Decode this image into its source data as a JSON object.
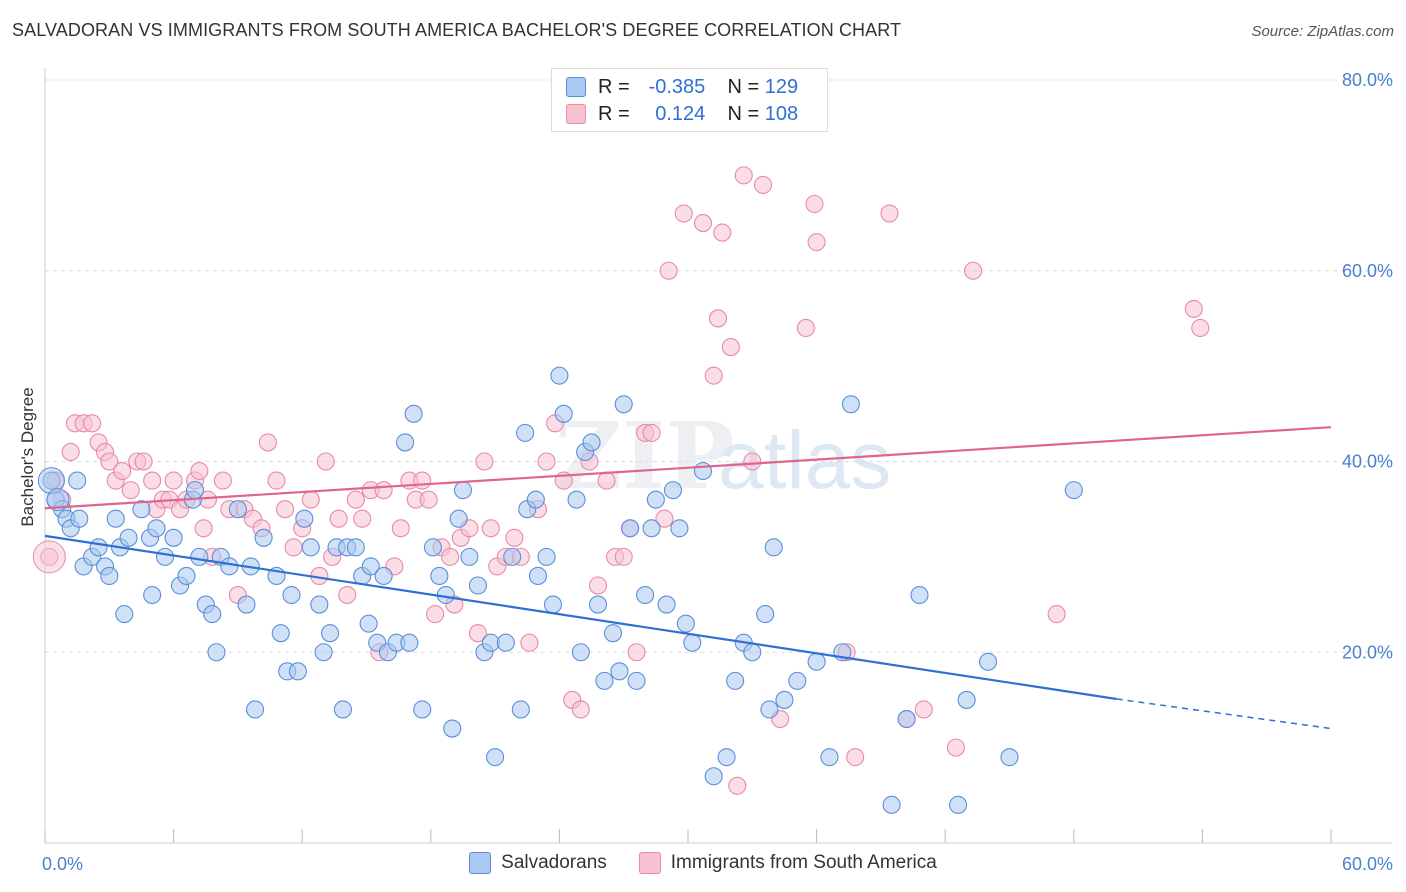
{
  "title": "SALVADORAN VS IMMIGRANTS FROM SOUTH AMERICA BACHELOR'S DEGREE CORRELATION CHART",
  "source": "Source: ZipAtlas.com",
  "watermark": {
    "zip": "ZIP",
    "atlas": "atlas"
  },
  "legend": {
    "r_label": "R =",
    "n_label": "N =",
    "rows": [
      {
        "r": "-0.385",
        "n": "129"
      },
      {
        "r": "0.124",
        "n": "108"
      }
    ]
  },
  "bottom_legend": [
    "Salvadorans",
    "Immigrants from South America"
  ],
  "colors": {
    "blue_fill": "#aac8f0",
    "blue_stroke": "#5b8fd9",
    "blue_line": "#2f6fd6",
    "pink_fill": "#f7c1d1",
    "pink_stroke": "#e88aa8",
    "pink_line": "#e0658e",
    "grid": "#dcdcdc",
    "tick_text": "#4a80d0"
  },
  "chart_data": {
    "type": "scatter",
    "title": "SALVADORAN VS IMMIGRANTS FROM SOUTH AMERICA BACHELOR'S DEGREE CORRELATION CHART",
    "xlabel": "",
    "ylabel": "Bachelor's Degree",
    "xlim": [
      0,
      60
    ],
    "ylim": [
      0,
      80
    ],
    "x_tick_labels": [
      "0.0%",
      "60.0%"
    ],
    "y_tick_values": [
      20,
      40,
      60,
      80
    ],
    "y_tick_labels": [
      "20.0%",
      "40.0%",
      "60.0%",
      "80.0%"
    ],
    "grid": true,
    "series": [
      {
        "name": "Salvadorans",
        "color": "#5b8fd9",
        "trend": {
          "x0": 0,
          "y0": 32.2,
          "x1": 50,
          "y1": 15.1,
          "dash_to": 60,
          "dash_y": 12.0
        },
        "points": [
          [
            0.3,
            38
          ],
          [
            0.5,
            36
          ],
          [
            0.8,
            35
          ],
          [
            1,
            34
          ],
          [
            1.2,
            33
          ],
          [
            1.5,
            38
          ],
          [
            1.6,
            34
          ],
          [
            1.8,
            29
          ],
          [
            2.2,
            30
          ],
          [
            2.5,
            31
          ],
          [
            2.8,
            29
          ],
          [
            3,
            28
          ],
          [
            3.3,
            34
          ],
          [
            3.5,
            31
          ],
          [
            3.7,
            24
          ],
          [
            3.9,
            32
          ],
          [
            4.5,
            35
          ],
          [
            4.9,
            32
          ],
          [
            5,
            26
          ],
          [
            5.2,
            33
          ],
          [
            5.6,
            30
          ],
          [
            6,
            32
          ],
          [
            6.3,
            27
          ],
          [
            6.6,
            28
          ],
          [
            6.9,
            36
          ],
          [
            7,
            37
          ],
          [
            7.2,
            30
          ],
          [
            7.5,
            25
          ],
          [
            7.8,
            24
          ],
          [
            8,
            20
          ],
          [
            8.2,
            30
          ],
          [
            8.6,
            29
          ],
          [
            9,
            35
          ],
          [
            9.4,
            25
          ],
          [
            9.6,
            29
          ],
          [
            9.8,
            14
          ],
          [
            10.2,
            32
          ],
          [
            10.8,
            28
          ],
          [
            11,
            22
          ],
          [
            11.3,
            18
          ],
          [
            11.5,
            26
          ],
          [
            11.8,
            18
          ],
          [
            12.1,
            34
          ],
          [
            12.4,
            31
          ],
          [
            12.8,
            25
          ],
          [
            13,
            20
          ],
          [
            13.3,
            22
          ],
          [
            13.6,
            31
          ],
          [
            13.9,
            14
          ],
          [
            14.1,
            31
          ],
          [
            14.5,
            31
          ],
          [
            14.8,
            28
          ],
          [
            15.1,
            23
          ],
          [
            15.2,
            29
          ],
          [
            15.5,
            21
          ],
          [
            15.8,
            28
          ],
          [
            16,
            20
          ],
          [
            16.4,
            21
          ],
          [
            16.8,
            42
          ],
          [
            17,
            21
          ],
          [
            17.2,
            45
          ],
          [
            17.6,
            14
          ],
          [
            18.1,
            31
          ],
          [
            18.4,
            28
          ],
          [
            18.7,
            26
          ],
          [
            19,
            12
          ],
          [
            19.5,
            37
          ],
          [
            19.8,
            30
          ],
          [
            20.2,
            27
          ],
          [
            20.5,
            20
          ],
          [
            20.8,
            21
          ],
          [
            21,
            9
          ],
          [
            21.5,
            21
          ],
          [
            21.8,
            30
          ],
          [
            22.2,
            14
          ],
          [
            22.5,
            35
          ],
          [
            22.9,
            36
          ],
          [
            23,
            28
          ],
          [
            23.4,
            30
          ],
          [
            23.7,
            25
          ],
          [
            24,
            49
          ],
          [
            24.2,
            45
          ],
          [
            24.8,
            36
          ],
          [
            25,
            20
          ],
          [
            25.2,
            41
          ],
          [
            25.5,
            42
          ],
          [
            25.8,
            25
          ],
          [
            26.1,
            17
          ],
          [
            26.5,
            22
          ],
          [
            26.8,
            18
          ],
          [
            27,
            46
          ],
          [
            27.3,
            33
          ],
          [
            27.6,
            17
          ],
          [
            28,
            26
          ],
          [
            28.3,
            33
          ],
          [
            28.5,
            36
          ],
          [
            29,
            25
          ],
          [
            29.3,
            37
          ],
          [
            29.6,
            33
          ],
          [
            29.9,
            23
          ],
          [
            30.2,
            21
          ],
          [
            30.7,
            39
          ],
          [
            31.2,
            7
          ],
          [
            31.8,
            9
          ],
          [
            32.2,
            17
          ],
          [
            32.6,
            21
          ],
          [
            33,
            20
          ],
          [
            33.6,
            24
          ],
          [
            33.8,
            14
          ],
          [
            34,
            31
          ],
          [
            34.5,
            15
          ],
          [
            35.1,
            17
          ],
          [
            36,
            19
          ],
          [
            36.6,
            9
          ],
          [
            37.2,
            20
          ],
          [
            37.6,
            46
          ],
          [
            39.5,
            4
          ],
          [
            40.2,
            13
          ],
          [
            40.8,
            26
          ],
          [
            42.6,
            4
          ],
          [
            43,
            15
          ],
          [
            44,
            19
          ],
          [
            45,
            9
          ],
          [
            48,
            37
          ],
          [
            22.4,
            43
          ],
          [
            19.3,
            34
          ]
        ]
      },
      {
        "name": "Immigrants from South America",
        "color": "#e88aa8",
        "trend": {
          "x0": 0,
          "y0": 35.1,
          "x1": 60,
          "y1": 43.6
        },
        "points": [
          [
            0.2,
            30
          ],
          [
            0.5,
            38
          ],
          [
            0.8,
            36
          ],
          [
            1.2,
            41
          ],
          [
            1.4,
            44
          ],
          [
            1.8,
            44
          ],
          [
            2.2,
            44
          ],
          [
            2.5,
            42
          ],
          [
            2.8,
            41
          ],
          [
            3,
            40
          ],
          [
            3.3,
            38
          ],
          [
            3.6,
            39
          ],
          [
            4,
            37
          ],
          [
            4.3,
            40
          ],
          [
            4.6,
            40
          ],
          [
            5,
            38
          ],
          [
            5.2,
            35
          ],
          [
            5.5,
            36
          ],
          [
            5.8,
            36
          ],
          [
            6,
            38
          ],
          [
            6.3,
            35
          ],
          [
            6.6,
            36
          ],
          [
            7,
            38
          ],
          [
            7.2,
            39
          ],
          [
            7.4,
            33
          ],
          [
            7.6,
            36
          ],
          [
            7.8,
            30
          ],
          [
            8.3,
            38
          ],
          [
            8.6,
            35
          ],
          [
            9,
            26
          ],
          [
            9.3,
            35
          ],
          [
            9.7,
            34
          ],
          [
            10.1,
            33
          ],
          [
            10.4,
            42
          ],
          [
            10.8,
            38
          ],
          [
            11.2,
            35
          ],
          [
            11.6,
            31
          ],
          [
            12,
            33
          ],
          [
            12.4,
            36
          ],
          [
            12.8,
            28
          ],
          [
            13.1,
            40
          ],
          [
            13.4,
            30
          ],
          [
            13.7,
            34
          ],
          [
            14.1,
            26
          ],
          [
            14.5,
            36
          ],
          [
            14.8,
            34
          ],
          [
            15.2,
            37
          ],
          [
            15.6,
            20
          ],
          [
            15.8,
            37
          ],
          [
            16.3,
            29
          ],
          [
            16.6,
            33
          ],
          [
            17,
            38
          ],
          [
            17.3,
            36
          ],
          [
            17.6,
            38
          ],
          [
            17.9,
            36
          ],
          [
            18.2,
            24
          ],
          [
            18.5,
            31
          ],
          [
            18.9,
            30
          ],
          [
            19.1,
            25
          ],
          [
            19.4,
            32
          ],
          [
            19.8,
            33
          ],
          [
            20.2,
            22
          ],
          [
            20.5,
            40
          ],
          [
            20.8,
            33
          ],
          [
            21.1,
            29
          ],
          [
            21.5,
            30
          ],
          [
            21.9,
            32
          ],
          [
            22.2,
            30
          ],
          [
            22.6,
            21
          ],
          [
            23,
            35
          ],
          [
            23.4,
            40
          ],
          [
            23.8,
            44
          ],
          [
            24.2,
            38
          ],
          [
            24.6,
            15
          ],
          [
            25,
            14
          ],
          [
            25.4,
            40
          ],
          [
            25.8,
            27
          ],
          [
            26.2,
            38
          ],
          [
            26.6,
            30
          ],
          [
            27,
            30
          ],
          [
            27.3,
            33
          ],
          [
            27.6,
            20
          ],
          [
            28,
            43
          ],
          [
            28.3,
            43
          ],
          [
            28.9,
            34
          ],
          [
            29.1,
            60
          ],
          [
            29.8,
            66
          ],
          [
            30.7,
            65
          ],
          [
            31.2,
            49
          ],
          [
            31.4,
            55
          ],
          [
            31.6,
            64
          ],
          [
            32,
            52
          ],
          [
            32.3,
            6
          ],
          [
            32.6,
            70
          ],
          [
            33,
            40
          ],
          [
            33.5,
            69
          ],
          [
            34.3,
            13
          ],
          [
            35.5,
            54
          ],
          [
            35.9,
            67
          ],
          [
            36,
            63
          ],
          [
            37.4,
            20
          ],
          [
            37.8,
            9
          ],
          [
            39.4,
            66
          ],
          [
            40.2,
            13
          ],
          [
            41,
            14
          ],
          [
            42.5,
            10
          ],
          [
            43.3,
            60
          ],
          [
            47.2,
            24
          ],
          [
            53.6,
            56
          ],
          [
            53.9,
            54
          ]
        ]
      }
    ]
  }
}
